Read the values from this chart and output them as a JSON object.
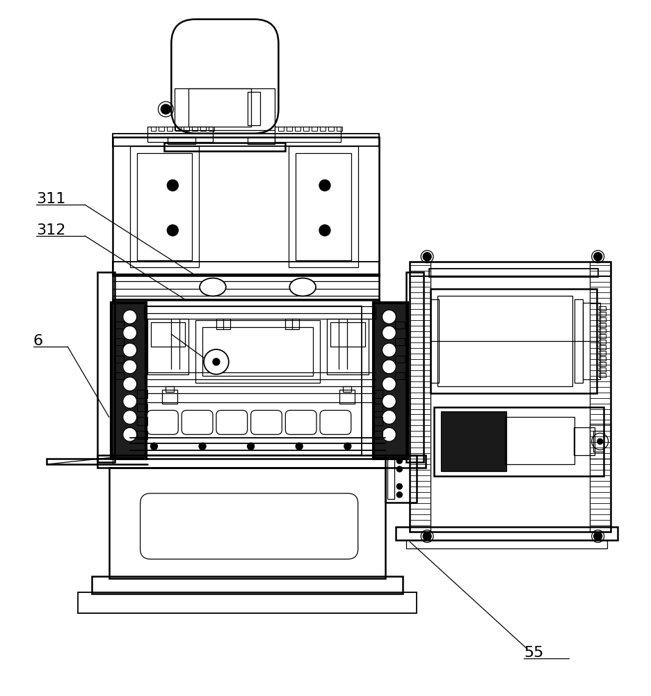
{
  "bg_color": "#ffffff",
  "line_color": "#000000",
  "lw_main": 1.8,
  "lw_thin": 0.9,
  "lw_thick": 3.0,
  "lw_med": 1.3,
  "label_fontsize": 16
}
